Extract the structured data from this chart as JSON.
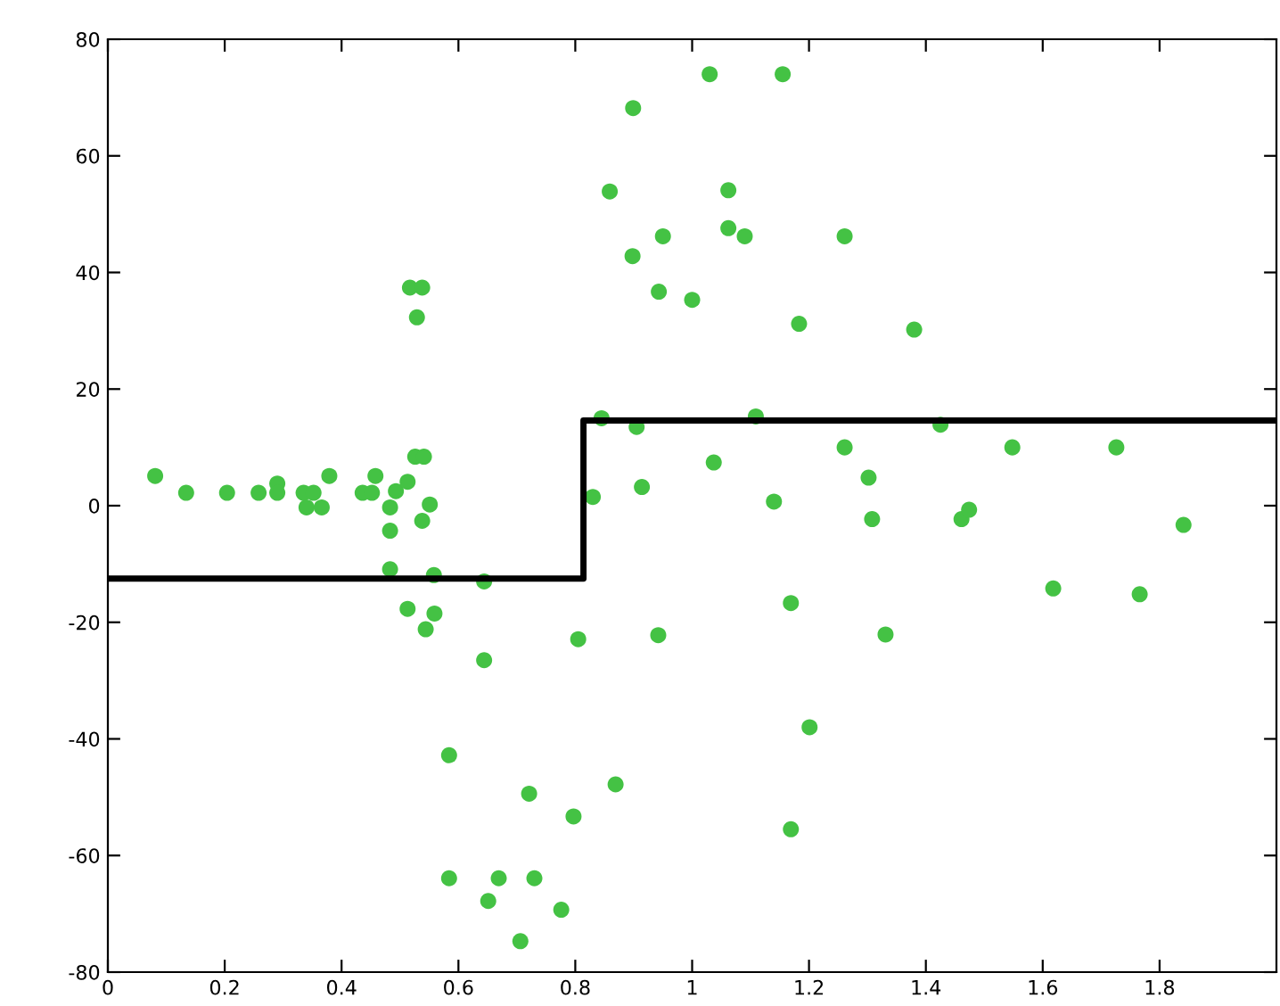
{
  "chart_data": {
    "type": "scatter",
    "xlim": [
      0,
      2
    ],
    "ylim": [
      -80,
      80
    ],
    "xticks": [
      0,
      0.2,
      0.4,
      0.6,
      0.8,
      1,
      1.2,
      1.4,
      1.6,
      1.8
    ],
    "yticks": [
      -80,
      -60,
      -40,
      -20,
      0,
      20,
      40,
      60,
      80
    ],
    "grid": false,
    "legend": false,
    "marker": "circle",
    "series": [
      {
        "color": "#44c244",
        "x": [
          0.081,
          0.134,
          0.204,
          0.258,
          0.29,
          0.29,
          0.335,
          0.352,
          0.34,
          0.366,
          0.379,
          0.436,
          0.452,
          0.458,
          0.483,
          0.493,
          0.513,
          0.526,
          0.541,
          0.551,
          0.538,
          0.483,
          0.483,
          0.558,
          0.644,
          0.513,
          0.559,
          0.544,
          0.517,
          0.538,
          0.529,
          0.644,
          0.805,
          0.83,
          0.845,
          0.905,
          0.914,
          0.942,
          0.898,
          0.943,
          0.584,
          0.721,
          0.869,
          0.797,
          0.584,
          0.669,
          0.73,
          0.651,
          0.776,
          0.706,
          1.03,
          1.155,
          1.062,
          0.95,
          0.859,
          0.899,
          1.062,
          1.09,
          1.261,
          1.0,
          1.183,
          1.38,
          1.109,
          1.425,
          1.261,
          1.548,
          1.726,
          1.037,
          1.14,
          1.302,
          1.308,
          1.461,
          1.474,
          1.841,
          1.169,
          1.331,
          1.618,
          1.766,
          1.201,
          1.169
        ],
        "values": [
          5.1,
          2.2,
          2.2,
          2.2,
          3.8,
          2.2,
          2.2,
          2.2,
          -0.3,
          -0.3,
          5.1,
          2.2,
          2.2,
          5.1,
          -0.3,
          2.5,
          4.1,
          8.4,
          8.4,
          0.2,
          -2.6,
          -4.3,
          -10.9,
          -11.9,
          -13,
          -17.7,
          -18.5,
          -21.2,
          37.4,
          37.4,
          32.3,
          -26.5,
          -22.9,
          1.5,
          15,
          13.5,
          3.2,
          -22.2,
          42.8,
          36.7,
          -42.8,
          -49.4,
          -47.8,
          -53.3,
          -63.9,
          -63.9,
          -63.9,
          -67.8,
          -69.3,
          -74.7,
          74,
          74,
          54.1,
          46.2,
          53.9,
          68.2,
          47.6,
          46.2,
          46.2,
          35.3,
          31.2,
          30.2,
          15.3,
          13.9,
          10,
          10,
          10,
          7.4,
          0.7,
          4.8,
          -2.3,
          -2.3,
          -0.7,
          -3.3,
          -16.7,
          -22.1,
          -14.2,
          -15.2,
          -38,
          -55.5
        ]
      },
      {
        "type": "step",
        "color": "#000000",
        "marker": "none",
        "line_style": "solid",
        "x": [
          0,
          0.814,
          2
        ],
        "values": [
          -12.5,
          14.6,
          14.6
        ]
      }
    ]
  }
}
